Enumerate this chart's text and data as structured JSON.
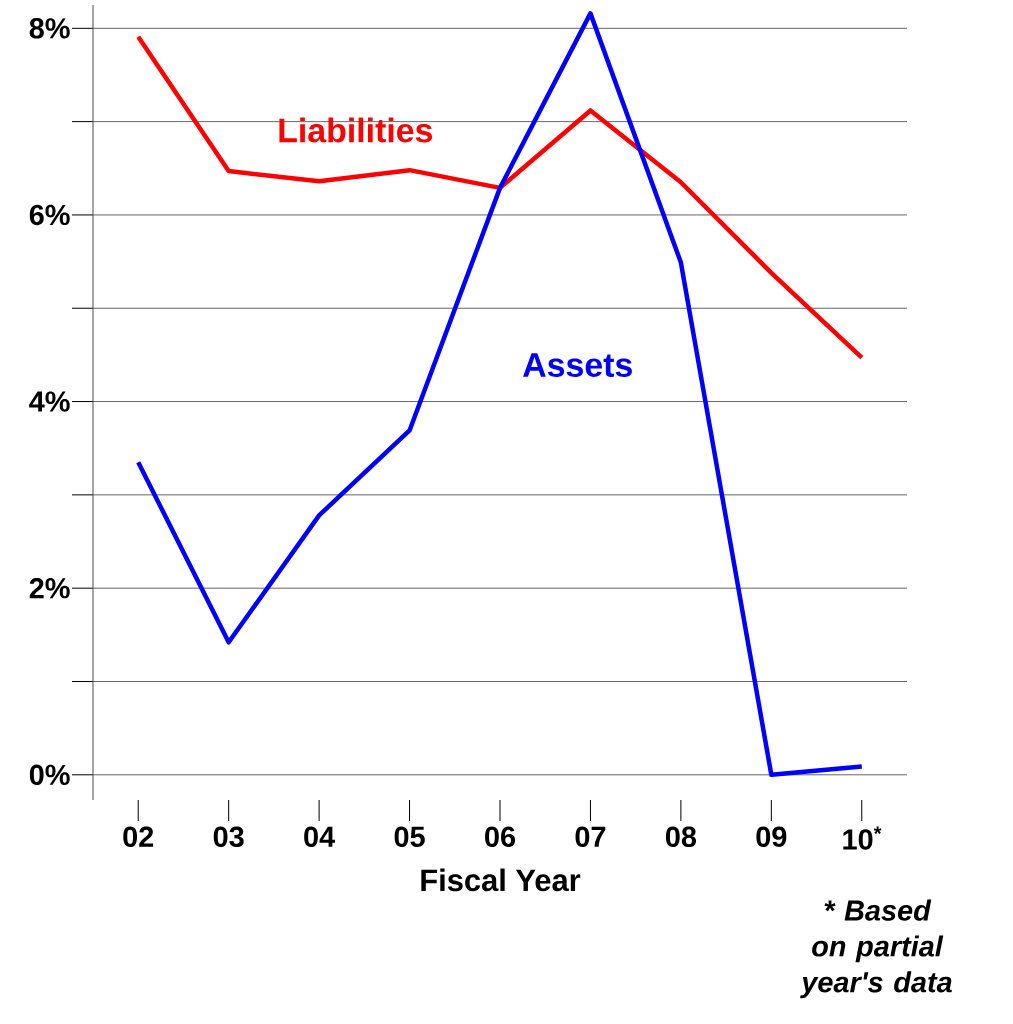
{
  "chart_data": {
    "type": "line",
    "xlabel": "Fiscal Year",
    "categories": [
      "02",
      "03",
      "04",
      "05",
      "06",
      "07",
      "08",
      "09",
      "10$^{*}$"
    ],
    "series": [
      {
        "name": "Liabilities",
        "color": "#ff0000",
        "values": [
          7.91,
          6.47,
          6.36,
          6.48,
          6.29,
          7.12,
          6.35,
          5.38,
          4.47
        ]
      },
      {
        "name": "Assets",
        "color": "#0000ff",
        "values": [
          3.35,
          1.42,
          2.78,
          3.69,
          6.29,
          8.16,
          5.49,
          0,
          0.09
        ]
      }
    ],
    "ylim": [
      -0.27,
      8.25
    ],
    "yticks": [
      {
        "value": 0,
        "label": "0%"
      },
      {
        "value": 1,
        "label": null
      },
      {
        "value": 2,
        "label": "2%"
      },
      {
        "value": 3,
        "label": null
      },
      {
        "value": 4,
        "label": "4%"
      },
      {
        "value": 5,
        "label": null
      },
      {
        "value": 6,
        "label": "6%"
      },
      {
        "value": 7,
        "label": null
      },
      {
        "value": 8,
        "label": "8%"
      }
    ],
    "grid": "y",
    "legend": false,
    "marker": "none",
    "line_style": "solid",
    "annotations": [
      "* Based on partial year's data"
    ]
  }
}
